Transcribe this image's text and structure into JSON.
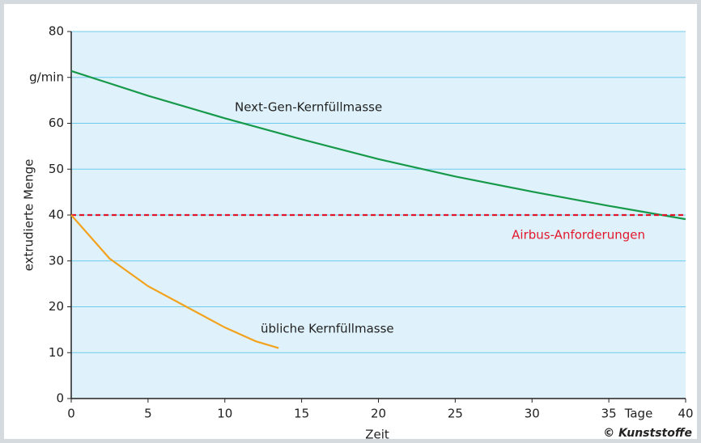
{
  "chart_data": {
    "type": "line",
    "y_label": "extrudierte Menge",
    "x_label": "Zeit",
    "x_unit": "Tage",
    "credit": "© Kunststoffe",
    "xlim": [
      0,
      40
    ],
    "xticks": [
      0,
      5,
      10,
      15,
      20,
      25,
      30,
      35,
      40
    ],
    "ylim": [
      0,
      80
    ],
    "yticks": [
      0,
      10,
      20,
      30,
      40,
      50,
      60,
      {
        "value": 70,
        "label": "g/min"
      },
      80
    ],
    "grid": true,
    "series": [
      {
        "name": "Next-Gen-Kernfüllmasse",
        "color": "#17994a",
        "style": "solid",
        "x": [
          0,
          5,
          10,
          15,
          20,
          25,
          30,
          35,
          40
        ],
        "values": [
          71.4,
          66,
          61.1,
          56.5,
          52.2,
          48.4,
          45.1,
          42,
          39.1
        ]
      },
      {
        "name": "Airbus-Anforderungen",
        "color": "#e3172b",
        "style": "dashed",
        "x": [
          0,
          40
        ],
        "values": [
          40,
          40
        ]
      },
      {
        "name": "übliche Kernfüllmasse",
        "color": "#f3a21d",
        "style": "solid",
        "x": [
          0,
          2.5,
          5,
          7.5,
          10,
          12,
          13.5
        ],
        "values": [
          40,
          30.5,
          24.5,
          20,
          15.5,
          12.5,
          11
        ]
      }
    ]
  }
}
